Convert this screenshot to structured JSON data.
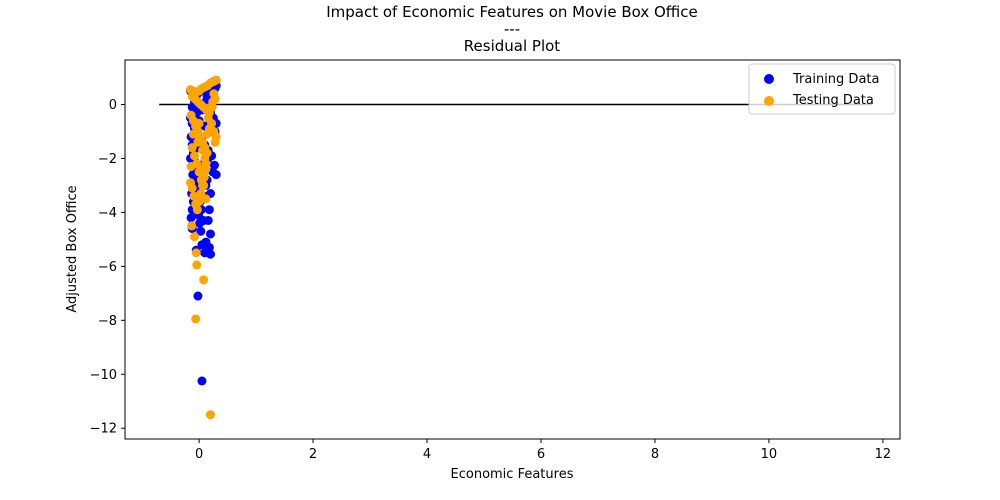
{
  "chart_data": {
    "type": "scatter",
    "title": [
      "Impact of Economic Features on Movie Box Office",
      "---",
      "Residual Plot"
    ],
    "xlabel": "Economic Features",
    "ylabel": "Adjusted Box Office",
    "xlim": [
      -1.3,
      12.3
    ],
    "ylim": [
      -12.4,
      1.65
    ],
    "xticks": [
      0,
      2,
      4,
      6,
      8,
      10,
      12
    ],
    "yticks": [
      -12,
      -10,
      -8,
      -6,
      -4,
      -2,
      0
    ],
    "xtick_labels": [
      "0",
      "2",
      "4",
      "6",
      "8",
      "10",
      "12"
    ],
    "ytick_labels": [
      "−12",
      "−10",
      "−8",
      "−6",
      "−4",
      "−2",
      "0"
    ],
    "hline": {
      "y": 0,
      "xmin": -0.7,
      "xmax": 11.8,
      "color": "#000000"
    },
    "legend": {
      "position": "top-right",
      "entries": [
        "Training Data",
        "Testing Data"
      ]
    },
    "series": [
      {
        "name": "Training Data",
        "color": "#0000ff",
        "points": [
          [
            -0.15,
            0.5
          ],
          [
            -0.1,
            0.4
          ],
          [
            -0.05,
            0.3
          ],
          [
            0.0,
            0.45
          ],
          [
            0.05,
            0.55
          ],
          [
            0.1,
            0.6
          ],
          [
            0.15,
            0.7
          ],
          [
            0.2,
            0.75
          ],
          [
            0.25,
            0.85
          ],
          [
            0.3,
            0.9
          ],
          [
            0.28,
            0.6
          ],
          [
            0.22,
            0.4
          ],
          [
            0.18,
            0.2
          ],
          [
            0.12,
            0.1
          ],
          [
            0.08,
            -0.1
          ],
          [
            0.02,
            -0.2
          ],
          [
            -0.04,
            -0.3
          ],
          [
            -0.1,
            -0.4
          ],
          [
            -0.15,
            -0.5
          ],
          [
            -0.12,
            -0.7
          ],
          [
            -0.08,
            -0.9
          ],
          [
            -0.02,
            -1.1
          ],
          [
            0.04,
            -1.3
          ],
          [
            0.1,
            -1.5
          ],
          [
            0.16,
            -1.7
          ],
          [
            0.22,
            -1.9
          ],
          [
            0.28,
            -1.0
          ],
          [
            0.3,
            -0.7
          ],
          [
            0.25,
            -0.5
          ],
          [
            0.2,
            -0.3
          ],
          [
            -0.14,
            -1.2
          ],
          [
            -0.12,
            -1.5
          ],
          [
            -0.1,
            -1.8
          ],
          [
            -0.08,
            -2.1
          ],
          [
            -0.06,
            -2.4
          ],
          [
            -0.04,
            -2.7
          ],
          [
            -0.02,
            -3.0
          ],
          [
            0.0,
            -3.3
          ],
          [
            0.02,
            -3.6
          ],
          [
            0.04,
            -3.9
          ],
          [
            -0.15,
            -2.0
          ],
          [
            -0.13,
            -2.3
          ],
          [
            -0.11,
            -2.6
          ],
          [
            -0.09,
            -2.9
          ],
          [
            -0.07,
            -3.2
          ],
          [
            -0.05,
            -3.5
          ],
          [
            -0.03,
            -3.8
          ],
          [
            -0.01,
            -4.1
          ],
          [
            0.01,
            -4.4
          ],
          [
            0.03,
            -4.7
          ],
          [
            0.3,
            -2.6
          ],
          [
            0.27,
            -2.25
          ],
          [
            0.24,
            -2.5
          ],
          [
            0.2,
            -3.3
          ],
          [
            0.18,
            -3.9
          ],
          [
            0.16,
            -4.3
          ],
          [
            0.2,
            -4.8
          ],
          [
            0.12,
            -5.1
          ],
          [
            0.05,
            -5.2
          ],
          [
            0.15,
            -5.4
          ],
          [
            0.2,
            -5.55
          ],
          [
            0.1,
            -5.5
          ],
          [
            0.18,
            -5.3
          ],
          [
            -0.05,
            -5.4
          ],
          [
            -0.12,
            -4.6
          ],
          [
            -0.14,
            -4.2
          ],
          [
            -0.12,
            -3.9
          ],
          [
            -0.1,
            -3.6
          ],
          [
            -0.13,
            -3.3
          ],
          [
            0.08,
            -4.3
          ],
          [
            -0.02,
            -7.1
          ],
          [
            0.05,
            -10.25
          ],
          [
            0.0,
            -0.6
          ],
          [
            0.1,
            -0.8
          ],
          [
            0.2,
            -1.0
          ],
          [
            0.06,
            -0.2
          ],
          [
            0.14,
            0.3
          ],
          [
            0.24,
            0.5
          ],
          [
            -0.06,
            0.2
          ],
          [
            0.0,
            -1.6
          ],
          [
            0.08,
            -2.2
          ],
          [
            0.14,
            -2.8
          ],
          [
            0.1,
            -3.4
          ],
          [
            0.06,
            -2.6
          ],
          [
            -0.12,
            -0.1
          ],
          [
            -0.08,
            0.1
          ],
          [
            0.26,
            0.8
          ],
          [
            0.3,
            0.7
          ],
          [
            0.12,
            -3.0
          ],
          [
            0.16,
            -2.0
          ]
        ]
      },
      {
        "name": "Testing Data",
        "color": "#ffa500",
        "points": [
          [
            -0.15,
            0.55
          ],
          [
            -0.1,
            0.5
          ],
          [
            -0.05,
            0.45
          ],
          [
            0.0,
            0.5
          ],
          [
            0.05,
            0.6
          ],
          [
            0.1,
            0.65
          ],
          [
            0.15,
            0.7
          ],
          [
            0.2,
            0.8
          ],
          [
            0.25,
            0.85
          ],
          [
            0.3,
            0.9
          ],
          [
            -0.12,
            0.3
          ],
          [
            -0.07,
            0.2
          ],
          [
            -0.02,
            0.1
          ],
          [
            0.03,
            0.0
          ],
          [
            0.08,
            -0.1
          ],
          [
            0.13,
            -0.2
          ],
          [
            0.18,
            -0.3
          ],
          [
            0.23,
            -0.1
          ],
          [
            0.28,
            0.2
          ],
          [
            0.26,
            0.4
          ],
          [
            -0.14,
            -0.4
          ],
          [
            -0.1,
            -0.6
          ],
          [
            -0.06,
            -0.8
          ],
          [
            -0.02,
            -1.0
          ],
          [
            0.02,
            -1.2
          ],
          [
            0.06,
            -1.4
          ],
          [
            0.1,
            -1.6
          ],
          [
            0.14,
            -1.8
          ],
          [
            0.18,
            -0.9
          ],
          [
            0.22,
            -0.7
          ],
          [
            0.3,
            -1.2
          ],
          [
            0.28,
            -1.4
          ],
          [
            0.26,
            -1.0
          ],
          [
            -0.12,
            -1.6
          ],
          [
            -0.08,
            -1.9
          ],
          [
            -0.04,
            -2.2
          ],
          [
            0.0,
            -2.5
          ],
          [
            0.04,
            -2.8
          ],
          [
            0.08,
            -3.0
          ],
          [
            0.12,
            -2.2
          ],
          [
            -0.15,
            -2.9
          ],
          [
            -0.12,
            -3.1
          ],
          [
            -0.09,
            -3.4
          ],
          [
            -0.06,
            -3.7
          ],
          [
            -0.03,
            -3.9
          ],
          [
            0.0,
            -3.6
          ],
          [
            0.03,
            -3.3
          ],
          [
            0.06,
            -3.0
          ],
          [
            0.09,
            -2.7
          ],
          [
            0.12,
            -2.4
          ],
          [
            -0.13,
            -4.5
          ],
          [
            -0.08,
            -4.9
          ],
          [
            -0.05,
            -5.5
          ],
          [
            -0.04,
            -5.95
          ],
          [
            0.08,
            -6.5
          ],
          [
            -0.06,
            -7.95
          ],
          [
            0.2,
            -11.5
          ],
          [
            0.12,
            -3.5
          ],
          [
            0.1,
            -2.0
          ],
          [
            0.06,
            -1.7
          ],
          [
            -0.1,
            -1.1
          ],
          [
            -0.14,
            -2.3
          ],
          [
            0.0,
            -0.7
          ],
          [
            0.16,
            -0.5
          ],
          [
            0.2,
            -0.1
          ],
          [
            0.24,
            0.1
          ],
          [
            0.04,
            -2.4
          ],
          [
            0.08,
            -2.6
          ],
          [
            -0.02,
            -1.4
          ],
          [
            0.14,
            -1.1
          ]
        ]
      }
    ]
  }
}
